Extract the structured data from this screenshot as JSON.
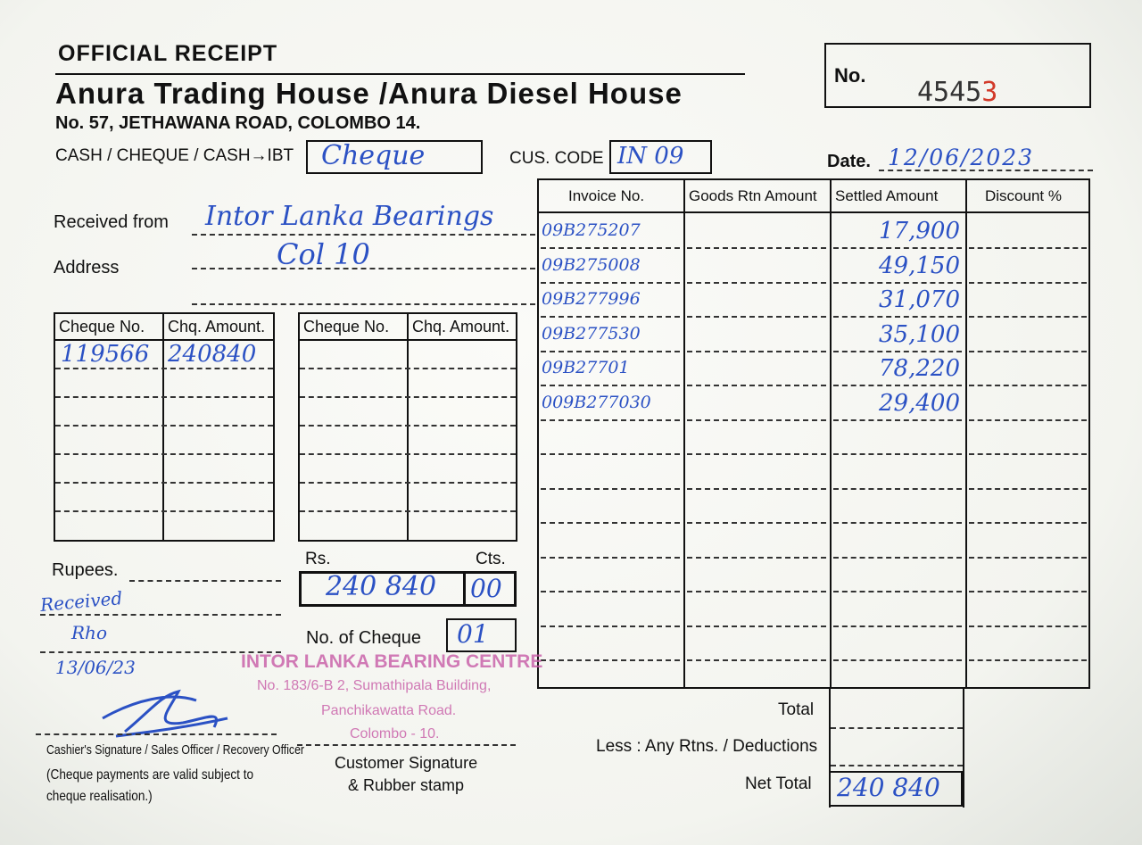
{
  "header": {
    "title": "OFFICIAL RECEIPT",
    "company": "Anura Trading House /Anura Diesel House",
    "address": "No. 57, JETHAWANA ROAD, COLOMBO 14.",
    "no_label": "No.",
    "receipt_no": "4545",
    "receipt_no_last": "3"
  },
  "payment": {
    "type_label": "CASH / CHEQUE / CASH→IBT",
    "type_value": "Cheque",
    "cus_code_label": "CUS. CODE",
    "cus_code_value": "IN 09",
    "date_label": "Date.",
    "date_value": "12/06/2023"
  },
  "received": {
    "from_label": "Received from",
    "from_value": "Intor Lanka Bearings",
    "address_label": "Address",
    "address_value": "Col 10"
  },
  "cheques": {
    "headers": [
      "Cheque No.",
      "Chq. Amount."
    ],
    "rows": [
      {
        "no": "119566",
        "amount": "240840"
      }
    ]
  },
  "amount": {
    "rupees_label": "Rupees.",
    "rs_label": "Rs.",
    "cts_label": "Cts.",
    "rs_value": "240 840",
    "cts_value": "00",
    "note": "Received",
    "initials": "Rho",
    "note_date": "13/06/23",
    "no_of_cheque_label": "No. of Cheque",
    "no_of_cheque_value": "01"
  },
  "invoices": {
    "headers": [
      "Invoice No.",
      "Goods Rtn Amount",
      "Settled Amount",
      "Discount %"
    ],
    "rows": [
      {
        "invoice": "09B275207",
        "settled": "17,900"
      },
      {
        "invoice": "09B275008",
        "settled": "49,150"
      },
      {
        "invoice": "09B277996",
        "settled": "31,070"
      },
      {
        "invoice": "09B277530",
        "settled": "35,100"
      },
      {
        "invoice": "09B27701",
        "settled": "78,220"
      },
      {
        "invoice": "009B277030",
        "settled": "29,400"
      }
    ]
  },
  "totals": {
    "total_label": "Total",
    "less_label": "Less : Any Rtns. / Deductions",
    "net_label": "Net Total",
    "net_value": "240 840"
  },
  "stamp": {
    "line1": "INTOR LANKA BEARING CENTRE",
    "line2": "No. 183/6-B 2, Sumathipala Building,",
    "line3": "Panchikawatta Road.",
    "line4": "Colombo - 10."
  },
  "footer": {
    "cashier": "Cashier's Signature / Sales Officer / Recovery Officer",
    "note": "(Cheque payments are valid subject to cheque realisation.)",
    "customer1": "Customer  Signature",
    "customer2": "& Rubber stamp"
  },
  "colors": {
    "ink": "#2b51c4",
    "stamp": "#c75aa6",
    "red_digit": "#d23a2a"
  }
}
